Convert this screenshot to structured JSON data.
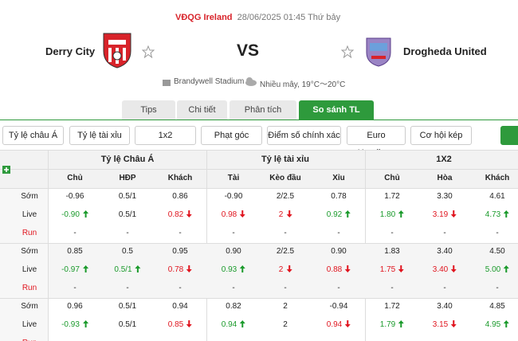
{
  "header": {
    "league": "VĐQG Ireland",
    "datetime": "28/06/2025 01:45 Thứ bảy",
    "home": "Derry City",
    "vs": "VS",
    "away": "Drogheda United",
    "venue": "Brandywell Stadium",
    "weather": "Nhiều mây, 19°C～20°C"
  },
  "tabs": [
    "Tips",
    "Chi tiết",
    "Phân tích",
    "So sánh TL"
  ],
  "active_tab": 3,
  "filters": [
    "Tỷ lệ châu Á",
    "Tỷ lệ tài xỉu",
    "1x2",
    "Phạt góc",
    "Điểm số chính xác",
    "Euro Handicap",
    "Cơ hội kép"
  ],
  "table": {
    "groups": [
      "Tỷ lệ Châu Á",
      "Tỷ lệ tài xỉu",
      "1X2"
    ],
    "columns": [
      "Chủ",
      "HĐP",
      "Khách",
      "Tài",
      "Kèo đầu",
      "Xỉu",
      "Chủ",
      "Hòa",
      "Khách"
    ],
    "sections": [
      [
        {
          "label": "Sớm",
          "cells": [
            "-0.96",
            "0.5/1",
            "0.86",
            "-0.90",
            "2/2.5",
            "0.78",
            "1.72",
            "3.30",
            "4.61"
          ]
        },
        {
          "label": "Live",
          "cells": [
            {
              "text": "-0.90",
              "trend": "up"
            },
            "0.5/1",
            {
              "text": "0.82",
              "trend": "down"
            },
            {
              "text": "0.98",
              "trend": "down"
            },
            {
              "text": "2",
              "trend": "down"
            },
            {
              "text": "0.92",
              "trend": "up"
            },
            {
              "text": "1.80",
              "trend": "up"
            },
            {
              "text": "3.19",
              "trend": "down"
            },
            {
              "text": "4.73",
              "trend": "up"
            }
          ]
        },
        {
          "label": "Run",
          "cells": [
            "-",
            "-",
            "-",
            "-",
            "-",
            "-",
            "-",
            "-",
            "-"
          ]
        }
      ],
      [
        {
          "label": "Sớm",
          "cells": [
            "0.85",
            "0.5",
            "0.95",
            "0.90",
            "2/2.5",
            "0.90",
            "1.83",
            "3.40",
            "4.50"
          ]
        },
        {
          "label": "Live",
          "cells": [
            {
              "text": "-0.97",
              "trend": "up"
            },
            {
              "text": "0.5/1",
              "trend": "up"
            },
            {
              "text": "0.78",
              "trend": "down"
            },
            {
              "text": "0.93",
              "trend": "up"
            },
            {
              "text": "2",
              "trend": "down"
            },
            {
              "text": "0.88",
              "trend": "down"
            },
            {
              "text": "1.75",
              "trend": "down"
            },
            {
              "text": "3.40",
              "trend": "down"
            },
            {
              "text": "5.00",
              "trend": "up"
            }
          ]
        },
        {
          "label": "Run",
          "cells": [
            "-",
            "-",
            "-",
            "-",
            "-",
            "-",
            "-",
            "-",
            "-"
          ]
        }
      ],
      [
        {
          "label": "Sớm",
          "cells": [
            "0.96",
            "0.5/1",
            "0.94",
            "0.82",
            "2",
            "-0.94",
            "1.72",
            "3.40",
            "4.85"
          ]
        },
        {
          "label": "Live",
          "cells": [
            {
              "text": "-0.93",
              "trend": "up"
            },
            "0.5/1",
            {
              "text": "0.85",
              "trend": "down"
            },
            {
              "text": "0.94",
              "trend": "up"
            },
            "2",
            {
              "text": "0.94",
              "trend": "down"
            },
            {
              "text": "1.79",
              "trend": "up"
            },
            {
              "text": "3.15",
              "trend": "down"
            },
            {
              "text": "4.95",
              "trend": "up"
            }
          ]
        },
        {
          "label": "Run",
          "cells": [
            "-",
            "-",
            "-",
            "-",
            "-",
            "-",
            "-",
            "-",
            "-"
          ]
        }
      ]
    ]
  }
}
